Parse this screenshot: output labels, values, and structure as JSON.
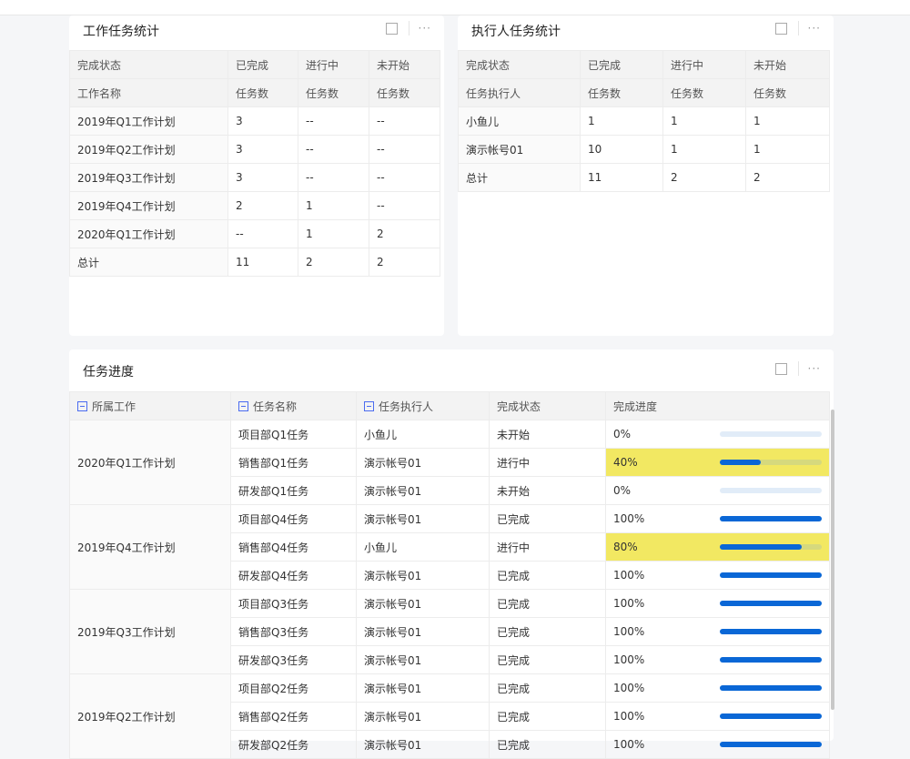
{
  "panel1": {
    "title": "工作任务统计",
    "header1": [
      "完成状态",
      "已完成",
      "进行中",
      "未开始"
    ],
    "header2": [
      "工作名称",
      "任务数",
      "任务数",
      "任务数"
    ],
    "rows": [
      [
        "2019年Q1工作计划",
        "3",
        "--",
        "--"
      ],
      [
        "2019年Q2工作计划",
        "3",
        "--",
        "--"
      ],
      [
        "2019年Q3工作计划",
        "3",
        "--",
        "--"
      ],
      [
        "2019年Q4工作计划",
        "2",
        "1",
        "--"
      ],
      [
        "2020年Q1工作计划",
        "--",
        "1",
        "2"
      ],
      [
        "总计",
        "11",
        "2",
        "2"
      ]
    ]
  },
  "panel2": {
    "title": "执行人任务统计",
    "header1": [
      "完成状态",
      "已完成",
      "进行中",
      "未开始"
    ],
    "header2": [
      "任务执行人",
      "任务数",
      "任务数",
      "任务数"
    ],
    "rows": [
      [
        "小鱼儿",
        "1",
        "1",
        "1"
      ],
      [
        "演示帐号01",
        "10",
        "1",
        "1"
      ],
      [
        "总计",
        "11",
        "2",
        "2"
      ]
    ]
  },
  "panel3": {
    "title": "任务进度",
    "headers": [
      "所属工作",
      "任务名称",
      "任务执行人",
      "完成状态",
      "完成进度"
    ],
    "groups": [
      {
        "work": "2020年Q1工作计划",
        "rows": [
          [
            "项目部Q1任务",
            "小鱼儿",
            "未开始",
            "0%",
            0
          ],
          [
            "销售部Q1任务",
            "演示帐号01",
            "进行中",
            "40%",
            40
          ],
          [
            "研发部Q1任务",
            "演示帐号01",
            "未开始",
            "0%",
            0
          ]
        ]
      },
      {
        "work": "2019年Q4工作计划",
        "rows": [
          [
            "项目部Q4任务",
            "演示帐号01",
            "已完成",
            "100%",
            100
          ],
          [
            "销售部Q4任务",
            "小鱼儿",
            "进行中",
            "80%",
            80
          ],
          [
            "研发部Q4任务",
            "演示帐号01",
            "已完成",
            "100%",
            100
          ]
        ]
      },
      {
        "work": "2019年Q3工作计划",
        "rows": [
          [
            "项目部Q3任务",
            "演示帐号01",
            "已完成",
            "100%",
            100
          ],
          [
            "销售部Q3任务",
            "演示帐号01",
            "已完成",
            "100%",
            100
          ],
          [
            "研发部Q3任务",
            "演示帐号01",
            "已完成",
            "100%",
            100
          ]
        ]
      },
      {
        "work": "2019年Q2工作计划",
        "rows": [
          [
            "项目部Q2任务",
            "演示帐号01",
            "已完成",
            "100%",
            100
          ],
          [
            "销售部Q2任务",
            "演示帐号01",
            "已完成",
            "100%",
            100
          ],
          [
            "研发部Q2任务",
            "演示帐号01",
            "已完成",
            "100%",
            100
          ]
        ]
      }
    ]
  },
  "colors": {
    "highlight": "#f2e862",
    "progress": "#0a67d6"
  },
  "icons": {
    "expand": "external-link-icon",
    "more": "more-icon",
    "collapse": "minus-square-icon"
  }
}
